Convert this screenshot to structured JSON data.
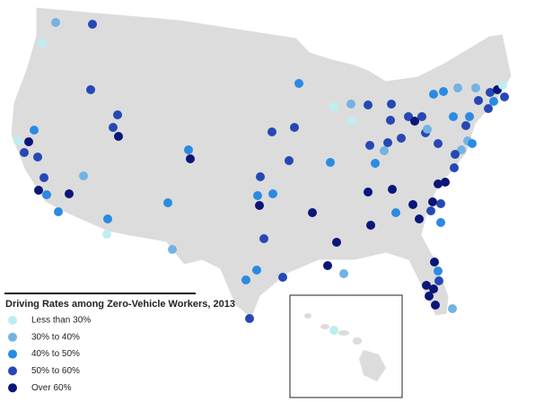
{
  "legend": {
    "title": "Driving Rates among Zero-Vehicle Workers, 2013",
    "items": [
      {
        "label": "Less than 30%",
        "color": "#bdeef0"
      },
      {
        "label": "30% to 40%",
        "color": "#72b3e3"
      },
      {
        "label": "40% to 50%",
        "color": "#2b8ae2"
      },
      {
        "label": "50% to 60%",
        "color": "#2648b5"
      },
      {
        "label": "Over 60%",
        "color": "#0b1679"
      }
    ]
  }
}
